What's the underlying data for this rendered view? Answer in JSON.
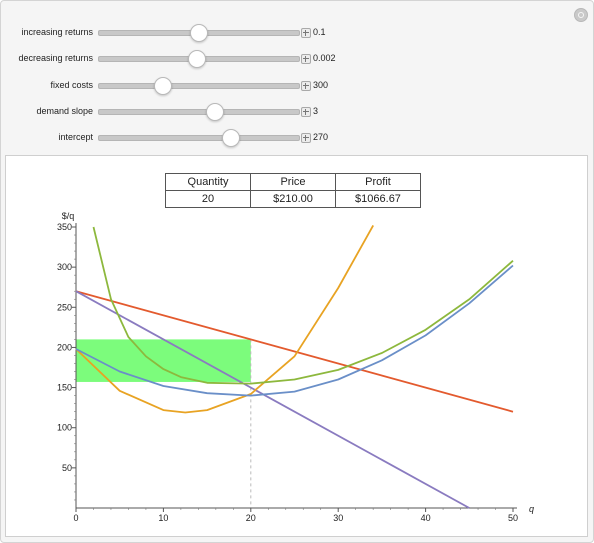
{
  "controls": [
    {
      "label": "increasing returns",
      "value": "0.1",
      "fraction": 0.5
    },
    {
      "label": "decreasing returns",
      "value": "0.002",
      "fraction": 0.49
    },
    {
      "label": "fixed costs",
      "value": "300",
      "fraction": 0.32
    },
    {
      "label": "demand slope",
      "value": "3",
      "fraction": 0.58
    },
    {
      "label": "intercept",
      "value": "270",
      "fraction": 0.66
    }
  ],
  "results": {
    "headers": [
      "Quantity",
      "Price",
      "Profit"
    ],
    "values": [
      "20",
      "$210.00",
      "$1066.67"
    ]
  },
  "chart_data": {
    "type": "line",
    "ylabel": "$/q",
    "xlabel": "q",
    "xlim": [
      0,
      50
    ],
    "ylim": [
      0,
      350
    ],
    "x_ticks": [
      0,
      10,
      20,
      30,
      40,
      50
    ],
    "y_ticks": [
      50,
      100,
      150,
      200,
      250,
      300,
      350
    ],
    "series": [
      {
        "color": "#e35a2e",
        "points": [
          [
            0,
            270
          ],
          [
            50,
            120
          ]
        ]
      },
      {
        "color": "#8a7bc0",
        "points": [
          [
            0,
            270
          ],
          [
            45,
            0
          ]
        ]
      },
      {
        "color": "#e8a323",
        "points": [
          [
            0,
            198
          ],
          [
            5,
            146
          ],
          [
            10,
            122
          ],
          [
            12.5,
            119
          ],
          [
            15,
            122
          ],
          [
            20,
            142
          ],
          [
            25,
            189
          ],
          [
            30,
            274
          ],
          [
            34,
            352
          ]
        ]
      },
      {
        "color": "#6a8fc8",
        "points": [
          [
            0,
            198
          ],
          [
            5,
            170
          ],
          [
            10,
            152
          ],
          [
            15,
            143
          ],
          [
            20,
            140
          ],
          [
            25,
            145
          ],
          [
            30,
            160
          ],
          [
            35,
            184
          ],
          [
            40,
            215
          ],
          [
            45,
            255
          ],
          [
            50,
            302
          ]
        ]
      },
      {
        "color": "#8db83d",
        "points": [
          [
            2,
            350
          ],
          [
            4,
            260
          ],
          [
            6,
            213
          ],
          [
            8,
            189
          ],
          [
            10,
            173
          ],
          [
            12,
            163
          ],
          [
            15,
            156
          ],
          [
            20,
            155
          ],
          [
            25,
            160
          ],
          [
            30,
            172
          ],
          [
            35,
            193
          ],
          [
            40,
            222
          ],
          [
            45,
            260
          ],
          [
            50,
            308
          ]
        ]
      }
    ],
    "quantity_marker": 20,
    "profit_rect": {
      "x": [
        0,
        20
      ],
      "y": [
        157,
        210
      ],
      "color": "#7cfc7c"
    }
  }
}
